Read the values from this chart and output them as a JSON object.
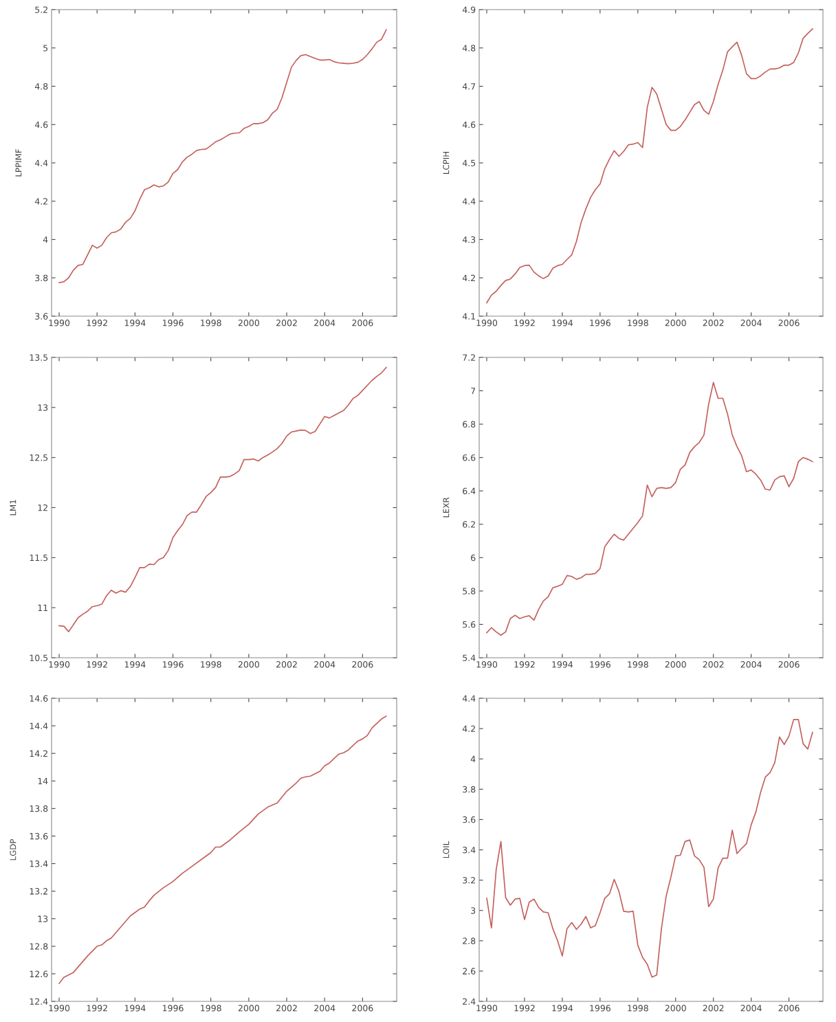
{
  "chart_data": [
    {
      "type": "line",
      "ylabel": "LPPIMF",
      "color": "#c4605c",
      "grid": false,
      "xlim": [
        1989.6,
        2007.8
      ],
      "xticks": [
        1990,
        1992,
        1994,
        1996,
        1998,
        2000,
        2002,
        2004,
        2006
      ],
      "ylim": [
        3.6,
        5.2
      ],
      "yticks": [
        3.6,
        3.8,
        4,
        4.2,
        4.4,
        4.6,
        4.8,
        5,
        5.2
      ],
      "x": [
        1990,
        1990.25,
        1990.5,
        1990.75,
        1991,
        1991.25,
        1991.5,
        1991.75,
        1992,
        1992.25,
        1992.5,
        1992.75,
        1993,
        1993.25,
        1993.5,
        1993.75,
        1994,
        1994.25,
        1994.5,
        1994.75,
        1995,
        1995.25,
        1995.5,
        1995.75,
        1996,
        1996.25,
        1996.5,
        1996.75,
        1997,
        1997.25,
        1997.5,
        1997.75,
        1998,
        1998.25,
        1998.5,
        1998.75,
        1999,
        1999.25,
        1999.5,
        1999.75,
        2000,
        2000.25,
        2000.5,
        2000.75,
        2001,
        2001.25,
        2001.5,
        2001.75,
        2002,
        2002.25,
        2002.5,
        2002.75,
        2003,
        2003.25,
        2003.5,
        2003.75,
        2004,
        2004.25,
        2004.5,
        2004.75,
        2005,
        2005.25,
        2005.5,
        2005.75,
        2006,
        2006.25,
        2006.5,
        2006.75,
        2007,
        2007.25
      ],
      "values": [
        3.775,
        3.78,
        3.8,
        3.84,
        3.865,
        3.87,
        3.92,
        3.97,
        3.955,
        3.97,
        4.01,
        4.035,
        4.04,
        4.055,
        4.09,
        4.11,
        4.15,
        4.21,
        4.26,
        4.27,
        4.285,
        4.275,
        4.28,
        4.3,
        4.345,
        4.365,
        4.405,
        4.43,
        4.445,
        4.465,
        4.47,
        4.472,
        4.49,
        4.51,
        4.52,
        4.535,
        4.55,
        4.555,
        4.557,
        4.58,
        4.59,
        4.605,
        4.605,
        4.61,
        4.625,
        4.66,
        4.68,
        4.74,
        4.82,
        4.9,
        4.935,
        4.96,
        4.965,
        4.955,
        4.945,
        4.937,
        4.937,
        4.94,
        4.928,
        4.922,
        4.92,
        4.918,
        4.92,
        4.925,
        4.94,
        4.965,
        4.995,
        5.03,
        5.045,
        5.095
      ]
    },
    {
      "type": "line",
      "ylabel": "LCPIH",
      "color": "#c4605c",
      "grid": false,
      "xlim": [
        1989.6,
        2007.8
      ],
      "xticks": [
        1990,
        1992,
        1994,
        1996,
        1998,
        2000,
        2002,
        2004,
        2006
      ],
      "ylim": [
        4.1,
        4.9
      ],
      "yticks": [
        4.1,
        4.2,
        4.3,
        4.4,
        4.5,
        4.6,
        4.7,
        4.8,
        4.9
      ],
      "x": [
        1990,
        1990.25,
        1990.5,
        1990.75,
        1991,
        1991.25,
        1991.5,
        1991.75,
        1992,
        1992.25,
        1992.5,
        1992.75,
        1993,
        1993.25,
        1993.5,
        1993.75,
        1994,
        1994.25,
        1994.5,
        1994.75,
        1995,
        1995.25,
        1995.5,
        1995.75,
        1996,
        1996.25,
        1996.5,
        1996.75,
        1997,
        1997.25,
        1997.5,
        1997.75,
        1998,
        1998.25,
        1998.5,
        1998.75,
        1999,
        1999.25,
        1999.5,
        1999.75,
        2000,
        2000.25,
        2000.5,
        2000.75,
        2001,
        2001.25,
        2001.5,
        2001.75,
        2002,
        2002.25,
        2002.5,
        2002.75,
        2003,
        2003.25,
        2003.5,
        2003.75,
        2004,
        2004.25,
        2004.5,
        2004.75,
        2005,
        2005.25,
        2005.5,
        2005.75,
        2006,
        2006.25,
        2006.5,
        2006.75,
        2007,
        2007.25
      ],
      "values": [
        4.135,
        4.155,
        4.165,
        4.18,
        4.193,
        4.197,
        4.21,
        4.227,
        4.232,
        4.233,
        4.215,
        4.205,
        4.198,
        4.205,
        4.225,
        4.232,
        4.235,
        4.248,
        4.26,
        4.295,
        4.345,
        4.38,
        4.41,
        4.43,
        4.445,
        4.485,
        4.51,
        4.532,
        4.517,
        4.53,
        4.547,
        4.549,
        4.553,
        4.54,
        4.645,
        4.697,
        4.68,
        4.64,
        4.6,
        4.585,
        4.585,
        4.595,
        4.612,
        4.632,
        4.652,
        4.66,
        4.637,
        4.627,
        4.66,
        4.705,
        4.742,
        4.79,
        4.803,
        4.815,
        4.78,
        4.733,
        4.72,
        4.72,
        4.727,
        4.737,
        4.745,
        4.745,
        4.748,
        4.755,
        4.755,
        4.762,
        4.787,
        4.825,
        4.838,
        4.85
      ]
    },
    {
      "type": "line",
      "ylabel": "LM1",
      "color": "#c4605c",
      "grid": false,
      "xlim": [
        1989.6,
        2007.8
      ],
      "xticks": [
        1990,
        1992,
        1994,
        1996,
        1998,
        2000,
        2002,
        2004,
        2006
      ],
      "ylim": [
        10.5,
        13.5
      ],
      "yticks": [
        10.5,
        11,
        11.5,
        12,
        12.5,
        13,
        13.5
      ],
      "x": [
        1990,
        1990.25,
        1990.5,
        1990.75,
        1991,
        1991.25,
        1991.5,
        1991.75,
        1992,
        1992.25,
        1992.5,
        1992.75,
        1993,
        1993.25,
        1993.5,
        1993.75,
        1994,
        1994.25,
        1994.5,
        1994.75,
        1995,
        1995.25,
        1995.5,
        1995.75,
        1996,
        1996.25,
        1996.5,
        1996.75,
        1997,
        1997.25,
        1997.5,
        1997.75,
        1998,
        1998.25,
        1998.5,
        1998.75,
        1999,
        1999.25,
        1999.5,
        1999.75,
        2000,
        2000.25,
        2000.5,
        2000.75,
        2001,
        2001.25,
        2001.5,
        2001.75,
        2002,
        2002.25,
        2002.5,
        2002.75,
        2003,
        2003.25,
        2003.5,
        2003.75,
        2004,
        2004.25,
        2004.5,
        2004.75,
        2005,
        2005.25,
        2005.5,
        2005.75,
        2006,
        2006.25,
        2006.5,
        2006.75,
        2007,
        2007.25
      ],
      "values": [
        10.82,
        10.815,
        10.76,
        10.83,
        10.9,
        10.935,
        10.965,
        11.01,
        11.02,
        11.035,
        11.12,
        11.175,
        11.145,
        11.17,
        11.155,
        11.21,
        11.3,
        11.4,
        11.4,
        11.435,
        11.43,
        11.48,
        11.5,
        11.57,
        11.7,
        11.77,
        11.83,
        11.92,
        11.955,
        11.955,
        12.03,
        12.11,
        12.15,
        12.2,
        12.305,
        12.305,
        12.31,
        12.335,
        12.37,
        12.48,
        12.48,
        12.485,
        12.465,
        12.5,
        12.525,
        12.555,
        12.59,
        12.64,
        12.715,
        12.755,
        12.765,
        12.775,
        12.77,
        12.74,
        12.76,
        12.835,
        12.91,
        12.895,
        12.92,
        12.945,
        12.97,
        13.025,
        13.09,
        13.12,
        13.17,
        13.22,
        13.27,
        13.31,
        13.345,
        13.4
      ]
    },
    {
      "type": "line",
      "ylabel": "LEXR",
      "color": "#c4605c",
      "grid": false,
      "xlim": [
        1989.6,
        2007.8
      ],
      "xticks": [
        1990,
        1992,
        1994,
        1996,
        1998,
        2000,
        2002,
        2004,
        2006
      ],
      "ylim": [
        5.4,
        7.2
      ],
      "yticks": [
        5.4,
        5.6,
        5.8,
        6,
        6.2,
        6.4,
        6.6,
        6.8,
        7,
        7.2
      ],
      "x": [
        1990,
        1990.25,
        1990.5,
        1990.75,
        1991,
        1991.25,
        1991.5,
        1991.75,
        1992,
        1992.25,
        1992.5,
        1992.75,
        1993,
        1993.25,
        1993.5,
        1993.75,
        1994,
        1994.25,
        1994.5,
        1994.75,
        1995,
        1995.25,
        1995.5,
        1995.75,
        1996,
        1996.25,
        1996.5,
        1996.75,
        1997,
        1997.25,
        1997.5,
        1997.75,
        1998,
        1998.25,
        1998.5,
        1998.75,
        1999,
        1999.25,
        1999.5,
        1999.75,
        2000,
        2000.25,
        2000.5,
        2000.75,
        2001,
        2001.25,
        2001.5,
        2001.75,
        2002,
        2002.25,
        2002.5,
        2002.75,
        2003,
        2003.25,
        2003.5,
        2003.75,
        2004,
        2004.25,
        2004.5,
        2004.75,
        2005,
        2005.25,
        2005.5,
        2005.75,
        2006,
        2006.25,
        2006.5,
        2006.75,
        2007,
        2007.25
      ],
      "values": [
        5.55,
        5.58,
        5.555,
        5.535,
        5.555,
        5.635,
        5.655,
        5.635,
        5.645,
        5.652,
        5.625,
        5.69,
        5.74,
        5.765,
        5.82,
        5.828,
        5.84,
        5.893,
        5.887,
        5.87,
        5.88,
        5.9,
        5.9,
        5.905,
        5.935,
        6.065,
        6.105,
        6.14,
        6.115,
        6.105,
        6.14,
        6.175,
        6.21,
        6.25,
        6.435,
        6.365,
        6.415,
        6.42,
        6.415,
        6.42,
        6.45,
        6.53,
        6.555,
        6.63,
        6.665,
        6.69,
        6.735,
        6.92,
        7.05,
        6.955,
        6.955,
        6.86,
        6.735,
        6.665,
        6.61,
        6.515,
        6.525,
        6.5,
        6.465,
        6.41,
        6.405,
        6.465,
        6.485,
        6.49,
        6.425,
        6.475,
        6.575,
        6.6,
        6.59,
        6.575
      ]
    },
    {
      "type": "line",
      "ylabel": "LGDP",
      "color": "#c4605c",
      "grid": false,
      "xlim": [
        1989.6,
        2007.8
      ],
      "xticks": [
        1990,
        1992,
        1994,
        1996,
        1998,
        2000,
        2002,
        2004,
        2006
      ],
      "ylim": [
        12.4,
        14.6
      ],
      "yticks": [
        12.4,
        12.6,
        12.8,
        13,
        13.2,
        13.4,
        13.6,
        13.8,
        14,
        14.2,
        14.4,
        14.6
      ],
      "x": [
        1990,
        1990.25,
        1990.75,
        1991,
        1991.5,
        1992,
        1992.25,
        1992.5,
        1992.75,
        1993,
        1993.5,
        1993.75,
        1994,
        1994.25,
        1994.5,
        1994.75,
        1995,
        1995.5,
        1996,
        1996.5,
        1997,
        1997.5,
        1998,
        1998.25,
        1998.5,
        1999,
        1999.5,
        2000,
        2000.5,
        2001,
        2001.5,
        2002,
        2002.5,
        2002.75,
        2003,
        2003.25,
        2003.75,
        2004,
        2004.25,
        2004.75,
        2005,
        2005.25,
        2005.75,
        2006,
        2006.25,
        2006.5,
        2007,
        2007.25
      ],
      "values": [
        12.53,
        12.575,
        12.61,
        12.65,
        12.73,
        12.8,
        12.81,
        12.84,
        12.86,
        12.9,
        12.98,
        13.02,
        13.045,
        13.07,
        13.085,
        13.13,
        13.17,
        13.225,
        13.27,
        13.33,
        13.38,
        13.43,
        13.48,
        13.52,
        13.52,
        13.57,
        13.63,
        13.685,
        13.76,
        13.81,
        13.84,
        13.925,
        13.985,
        14.02,
        14.03,
        14.035,
        14.07,
        14.11,
        14.13,
        14.195,
        14.205,
        14.225,
        14.29,
        14.305,
        14.33,
        14.385,
        14.45,
        14.47
      ]
    },
    {
      "type": "line",
      "ylabel": "LOIL",
      "color": "#c4605c",
      "grid": false,
      "xlim": [
        1989.6,
        2007.8
      ],
      "xticks": [
        1990,
        1992,
        1994,
        1996,
        1998,
        2000,
        2002,
        2004,
        2006
      ],
      "ylim": [
        2.4,
        4.4
      ],
      "yticks": [
        2.4,
        2.6,
        2.8,
        3,
        3.2,
        3.4,
        3.6,
        3.8,
        4,
        4.2,
        4.4
      ],
      "x": [
        1990,
        1990.25,
        1990.5,
        1990.75,
        1991,
        1991.25,
        1991.5,
        1991.75,
        1992,
        1992.25,
        1992.5,
        1992.75,
        1993,
        1993.25,
        1993.5,
        1993.75,
        1994,
        1994.25,
        1994.5,
        1994.75,
        1995,
        1995.25,
        1995.5,
        1995.75,
        1996,
        1996.25,
        1996.5,
        1996.75,
        1997,
        1997.25,
        1997.5,
        1997.75,
        1998,
        1998.25,
        1998.5,
        1998.75,
        1999,
        1999.25,
        1999.5,
        1999.75,
        2000,
        2000.25,
        2000.5,
        2000.75,
        2001,
        2001.25,
        2001.5,
        2001.75,
        2002,
        2002.25,
        2002.5,
        2002.75,
        2003,
        2003.25,
        2003.5,
        2003.75,
        2004,
        2004.25,
        2004.5,
        2004.75,
        2005,
        2005.25,
        2005.5,
        2005.75,
        2006,
        2006.25,
        2006.5,
        2006.75,
        2007,
        2007.25
      ],
      "values": [
        3.08,
        2.885,
        3.27,
        3.455,
        3.085,
        3.035,
        3.075,
        3.08,
        2.94,
        3.055,
        3.075,
        3.02,
        2.99,
        2.985,
        2.88,
        2.8,
        2.7,
        2.88,
        2.92,
        2.875,
        2.91,
        2.96,
        2.885,
        2.9,
        2.985,
        3.08,
        3.11,
        3.205,
        3.125,
        2.995,
        2.99,
        2.995,
        2.77,
        2.69,
        2.645,
        2.56,
        2.575,
        2.88,
        3.095,
        3.22,
        3.36,
        3.365,
        3.455,
        3.465,
        3.36,
        3.335,
        3.285,
        3.025,
        3.075,
        3.28,
        3.345,
        3.345,
        3.53,
        3.375,
        3.41,
        3.44,
        3.565,
        3.65,
        3.78,
        3.88,
        3.91,
        3.975,
        4.145,
        4.095,
        4.15,
        4.26,
        4.26,
        4.1,
        4.065,
        4.175
      ]
    }
  ]
}
